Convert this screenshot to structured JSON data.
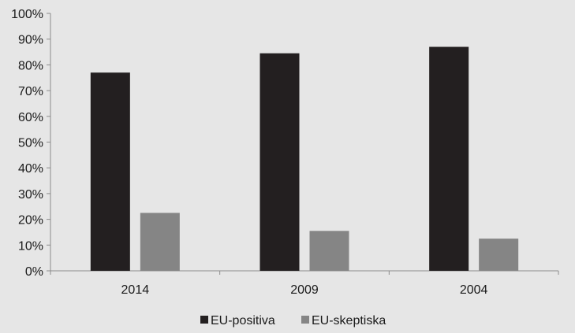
{
  "chart_data": {
    "type": "bar",
    "categories": [
      "2014",
      "2009",
      "2004"
    ],
    "series": [
      {
        "name": "EU-positiva",
        "values": [
          77,
          84.5,
          87
        ],
        "color": "#231f20"
      },
      {
        "name": "EU-skeptiska",
        "values": [
          22.5,
          15.5,
          12.5
        ],
        "color": "#858585"
      }
    ],
    "ylim": [
      0,
      100
    ],
    "yticks": [
      0,
      10,
      20,
      30,
      40,
      50,
      60,
      70,
      80,
      90,
      100
    ],
    "ytick_labels": [
      "0%",
      "10%",
      "20%",
      "30%",
      "40%",
      "50%",
      "60%",
      "70%",
      "80%",
      "90%",
      "100%"
    ],
    "grid": false,
    "legend_position": "bottom-center",
    "title": "",
    "xlabel": "",
    "ylabel": ""
  }
}
